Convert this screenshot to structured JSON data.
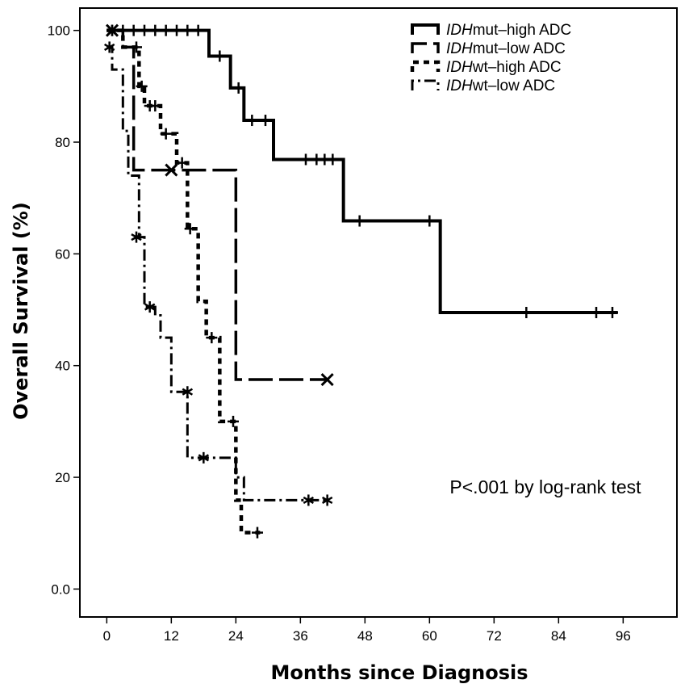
{
  "chart_data": {
    "type": "line",
    "subtype": "kaplan-meier-step",
    "title": "",
    "xlabel": "Months since Diagnosis",
    "ylabel": "Overall Survival (%)",
    "xlim": [
      -5,
      106
    ],
    "ylim": [
      -5,
      104
    ],
    "x_ticks": [
      0,
      12,
      24,
      36,
      48,
      60,
      72,
      84,
      96
    ],
    "y_ticks": [
      {
        "value": 0,
        "label": "0.0"
      },
      {
        "value": 20,
        "label": "20"
      },
      {
        "value": 40,
        "label": "40"
      },
      {
        "value": 60,
        "label": "60"
      },
      {
        "value": 80,
        "label": "80"
      },
      {
        "value": 100,
        "label": "100"
      }
    ],
    "grid": false,
    "legend_position": "top-right",
    "annotation": "P<.001 by log-rank test",
    "series": [
      {
        "name": "IDHmut–high ADC",
        "name_italic": "IDH",
        "name_rest": "mut–high ADC",
        "style": "solid",
        "censor_marker": "plus",
        "steps": [
          [
            0,
            100
          ],
          [
            19,
            95.4
          ],
          [
            23,
            89.7
          ],
          [
            25.5,
            83.9
          ],
          [
            31,
            76.9
          ],
          [
            44,
            65.9
          ],
          [
            62,
            49.5
          ],
          [
            95,
            49.5
          ]
        ],
        "censored": [
          [
            1,
            100
          ],
          [
            3,
            100
          ],
          [
            5,
            100
          ],
          [
            7,
            100
          ],
          [
            9,
            100
          ],
          [
            11,
            100
          ],
          [
            13,
            100
          ],
          [
            15,
            100
          ],
          [
            17,
            100
          ],
          [
            21,
            95.4
          ],
          [
            24.5,
            89.7
          ],
          [
            27,
            83.9
          ],
          [
            29.5,
            83.9
          ],
          [
            37,
            76.9
          ],
          [
            39,
            76.9
          ],
          [
            40.5,
            76.9
          ],
          [
            42,
            76.9
          ],
          [
            47,
            65.9
          ],
          [
            60,
            65.9
          ],
          [
            78,
            49.5
          ],
          [
            91,
            49.5
          ],
          [
            94,
            49.5
          ]
        ]
      },
      {
        "name": "IDHmut–low ADC",
        "name_italic": "IDH",
        "name_rest": "mut–low ADC",
        "style": "long-dash",
        "censor_marker": "x",
        "steps": [
          [
            0,
            100
          ],
          [
            3,
            97
          ],
          [
            5,
            75
          ],
          [
            24,
            37.5
          ],
          [
            41,
            37.5
          ]
        ],
        "censored": [
          [
            1,
            100
          ],
          [
            12,
            75
          ],
          [
            41,
            37.5
          ]
        ]
      },
      {
        "name": "IDHwt–high ADC",
        "name_italic": "IDH",
        "name_rest": "wt–high ADC",
        "style": "dotted",
        "censor_marker": "plus",
        "steps": [
          [
            0,
            100
          ],
          [
            3,
            97
          ],
          [
            6,
            90
          ],
          [
            7,
            86.5
          ],
          [
            10,
            81.5
          ],
          [
            13,
            76.3
          ],
          [
            15,
            64.5
          ],
          [
            17,
            51.5
          ],
          [
            18.5,
            45
          ],
          [
            21,
            30
          ],
          [
            24,
            15.9
          ],
          [
            25,
            10.1
          ],
          [
            28.5,
            10.1
          ]
        ],
        "censored": [
          [
            1,
            100
          ],
          [
            5.5,
            97
          ],
          [
            6.5,
            90
          ],
          [
            8,
            86.5
          ],
          [
            9,
            86.5
          ],
          [
            11,
            81.5
          ],
          [
            14,
            76.3
          ],
          [
            15.5,
            64.5
          ],
          [
            19.5,
            45
          ],
          [
            23.5,
            30
          ],
          [
            28,
            10.1
          ]
        ]
      },
      {
        "name": "IDHwt–low ADC",
        "name_italic": "IDH",
        "name_rest": "wt–low ADC",
        "style": "dash-dot",
        "censor_marker": "asterisk",
        "steps": [
          [
            0,
            97
          ],
          [
            1,
            93
          ],
          [
            3,
            82
          ],
          [
            4,
            74
          ],
          [
            6,
            63
          ],
          [
            7,
            50.5
          ],
          [
            9,
            49
          ],
          [
            10,
            45
          ],
          [
            12,
            35.3
          ],
          [
            15,
            23.5
          ],
          [
            24,
            20
          ],
          [
            25.5,
            15.9
          ],
          [
            41,
            15.9
          ]
        ],
        "censored": [
          [
            0.5,
            97
          ],
          [
            5.5,
            63
          ],
          [
            8,
            50.5
          ],
          [
            15,
            35.3
          ],
          [
            18,
            23.5
          ],
          [
            37.5,
            15.9
          ],
          [
            41,
            15.9
          ]
        ]
      }
    ]
  }
}
